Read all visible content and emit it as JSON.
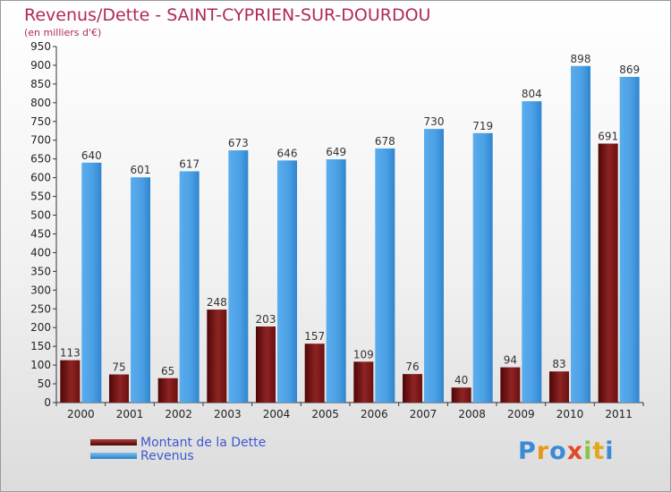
{
  "chart": {
    "title": "Revenus/Dette - SAINT-CYPRIEN-SUR-DOURDOU",
    "subtitle": "(en milliers d'€)",
    "logo_text": "Proxiti"
  },
  "colors": {
    "dette": "#7a1414",
    "revenus": "#4a9ee3",
    "title": "#b0295a",
    "legend_text": "#3f58d0"
  },
  "chart_data": {
    "type": "bar",
    "categories": [
      "2000",
      "2001",
      "2002",
      "2003",
      "2004",
      "2005",
      "2006",
      "2007",
      "2008",
      "2009",
      "2010",
      "2011"
    ],
    "series": [
      {
        "name": "Montant de la Dette",
        "values": [
          113,
          75,
          65,
          248,
          203,
          157,
          109,
          76,
          40,
          94,
          83,
          691
        ]
      },
      {
        "name": "Revenus",
        "values": [
          640,
          601,
          617,
          673,
          646,
          649,
          678,
          730,
          719,
          804,
          898,
          869
        ]
      }
    ],
    "ylim": [
      0,
      950
    ],
    "yticks": [
      0,
      50,
      100,
      150,
      200,
      250,
      300,
      350,
      400,
      450,
      500,
      550,
      600,
      650,
      700,
      750,
      800,
      850,
      900,
      950
    ],
    "grid": false,
    "legend_position": "bottom-left"
  }
}
